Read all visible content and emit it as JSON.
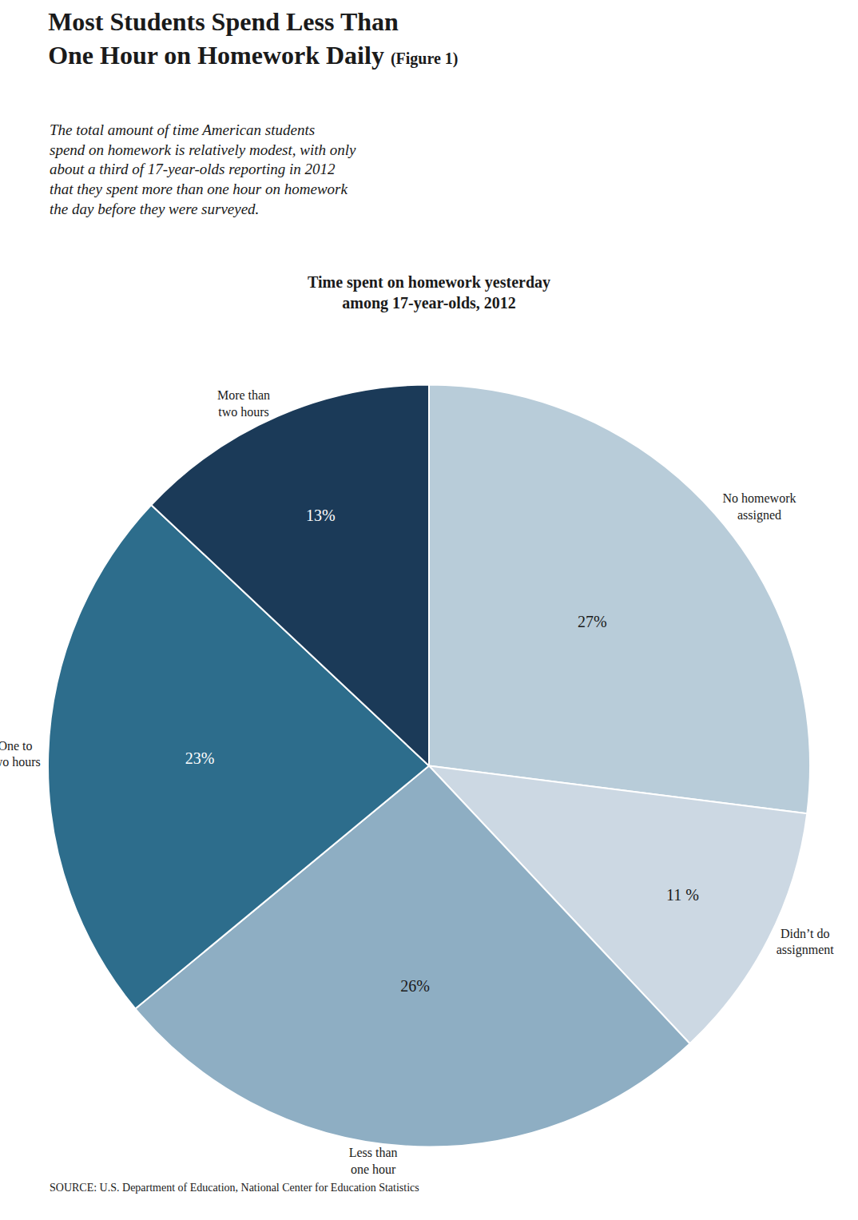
{
  "chart_data": {
    "type": "pie",
    "title": "Most Students Spend Less Than\nOne Hour on Homework Daily",
    "subtitle": "The total amount of time American students\nspend on homework is relatively modest, with only\nabout a third of 17-year-olds reporting in 2012\nthat they spent more than one hour on homework\nthe day before they were surveyed.",
    "annotations": [
      "(Figure 1)",
      "Time spent on homework yesterday\namong 17-year-olds, 2012",
      "SOURCE: U.S. Department of Education, National Center for Education Statistics"
    ],
    "categories": [
      "No homework\nassigned",
      "Didn’t do\nassignment",
      "Less than\none hour",
      "One to\ntwo hours",
      "More than\ntwo hours"
    ],
    "values": [
      27,
      11,
      26,
      23,
      13
    ],
    "value_labels": [
      "27%",
      "11 %",
      "26%",
      "23%",
      "13%"
    ],
    "colors": [
      "#b8ccd9",
      "#ccd8e3",
      "#8eaec3",
      "#2d6d8c",
      "#1b3a58"
    ],
    "data_labels": true
  }
}
